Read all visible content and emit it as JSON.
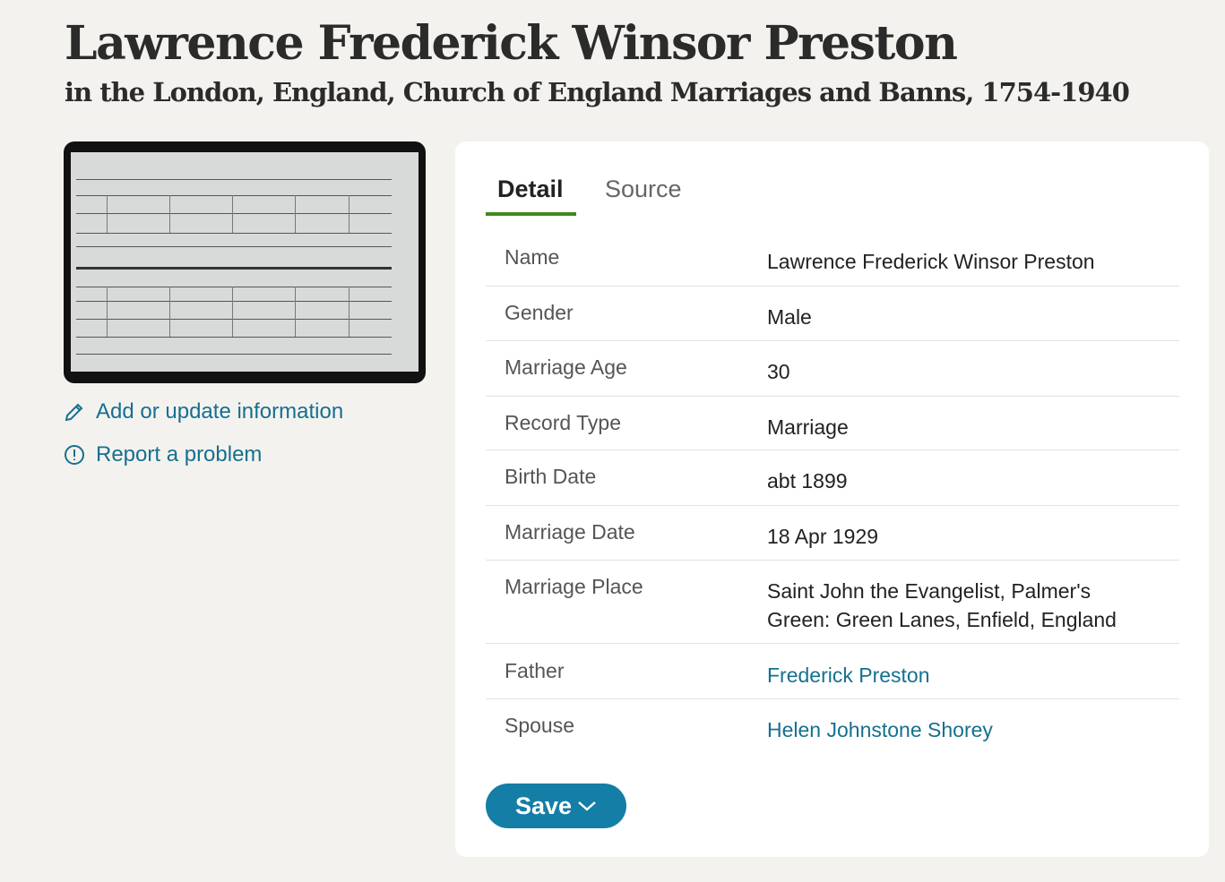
{
  "header": {
    "title": "Lawrence Frederick Winsor Preston",
    "subtitle": "in the London, England, Church of England Marriages and Banns, 1754-1940"
  },
  "image": {
    "alt": "Marriage register page"
  },
  "actions": {
    "add_update": "Add or update information",
    "report": "Report a problem"
  },
  "tabs": [
    {
      "label": "Detail",
      "active": true
    },
    {
      "label": "Source",
      "active": false
    }
  ],
  "details": [
    {
      "label": "Name",
      "value": "Lawrence Frederick Winsor Preston"
    },
    {
      "label": "Gender",
      "value": "Male"
    },
    {
      "label": "Marriage Age",
      "value": "30"
    },
    {
      "label": "Record Type",
      "value": "Marriage"
    },
    {
      "label": "Birth Date",
      "value": "abt 1899"
    },
    {
      "label": "Marriage Date",
      "value": "18 Apr 1929"
    },
    {
      "label": "Marriage Place",
      "value": "Saint John the Evangelist, Palmer's Green: Green Lanes, Enfield, England"
    },
    {
      "label": "Father",
      "value": "Frederick Preston",
      "link": true
    },
    {
      "label": "Spouse",
      "value": "Helen Johnstone Shorey",
      "link": true
    }
  ],
  "save_label": "Save",
  "colors": {
    "accent": "#147ea6",
    "link": "#15708f",
    "tab_underline": "#3f8a1e"
  }
}
